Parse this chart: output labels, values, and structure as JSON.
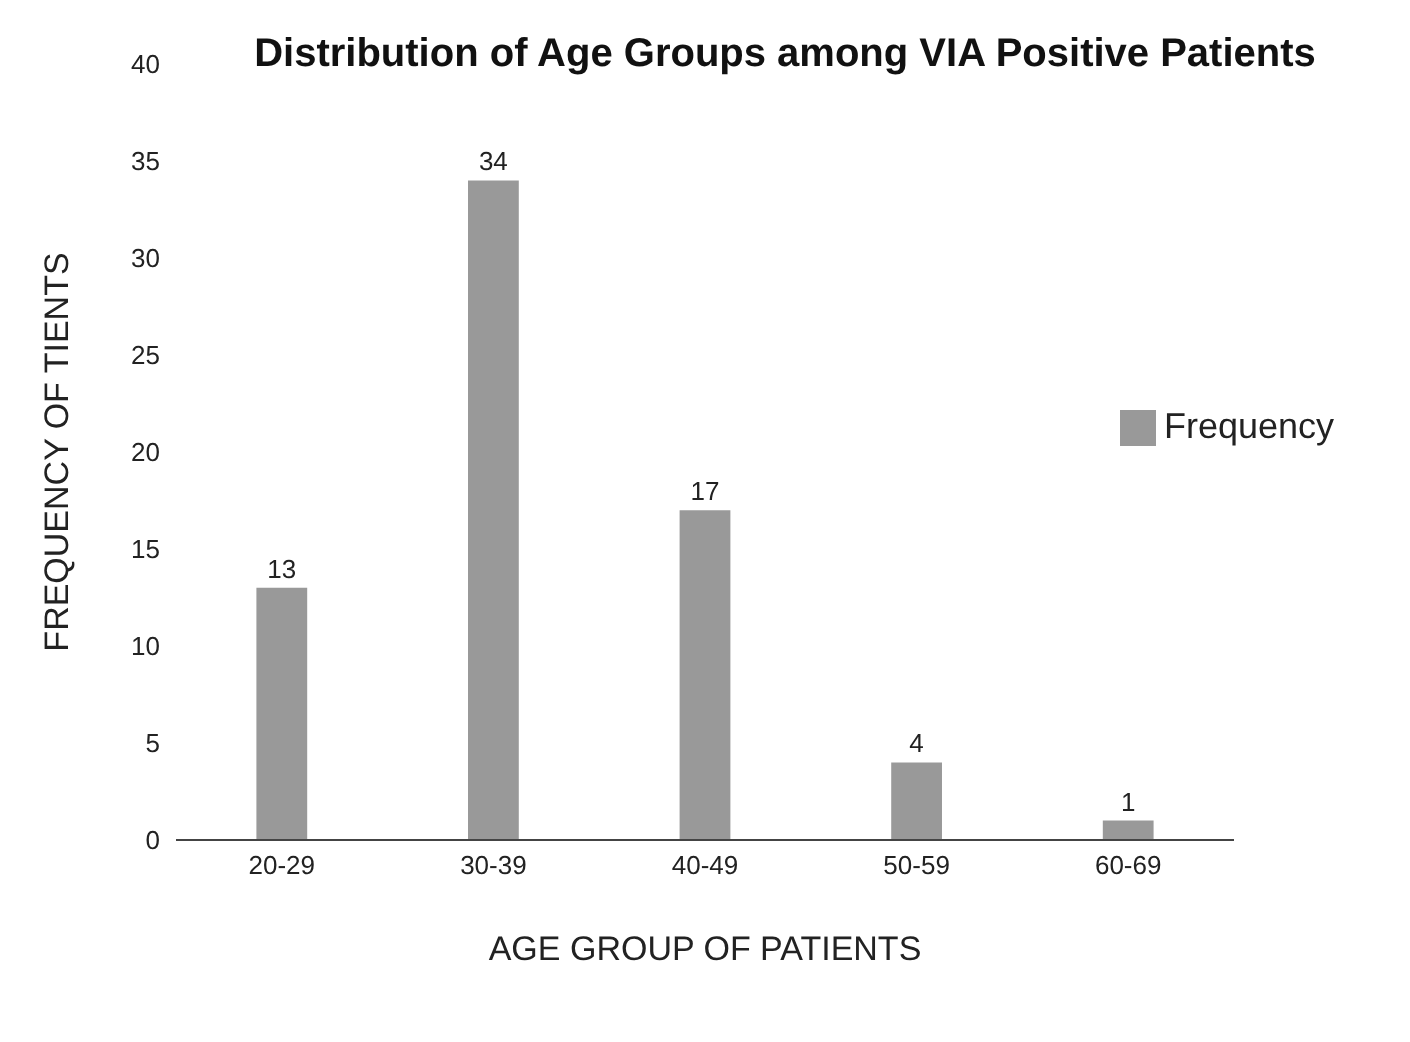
{
  "chart_data": {
    "type": "bar",
    "title": "Distribution of Age Groups among VIA Positive Patients",
    "xlabel": "AGE GROUP OF PATIENTS",
    "ylabel": "FREQUENCY OF TIENTS",
    "categories": [
      "20-29",
      "30-39",
      "40-49",
      "50-59",
      "60-69"
    ],
    "series": [
      {
        "name": "Frequency",
        "color": "#999999",
        "values": [
          13,
          34,
          17,
          4,
          1
        ]
      }
    ],
    "ylim": [
      0,
      40
    ],
    "yticks": [
      0,
      5,
      10,
      15,
      20,
      25,
      30,
      35,
      40
    ],
    "data_labels": true,
    "legend": "right",
    "grid": false
  }
}
